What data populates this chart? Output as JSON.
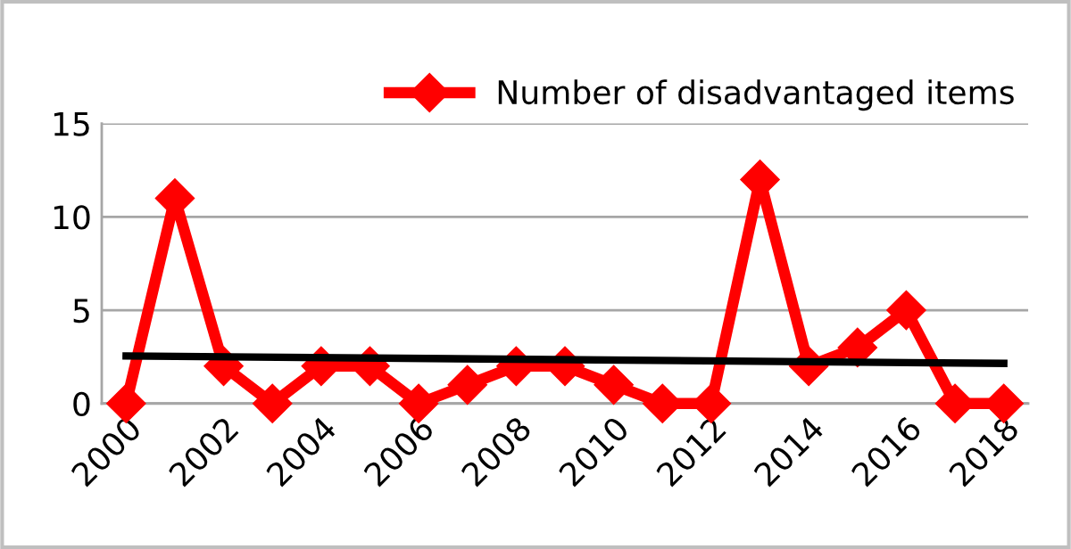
{
  "chart_data": {
    "type": "line",
    "x": [
      2000,
      2001,
      2002,
      2003,
      2004,
      2005,
      2006,
      2007,
      2008,
      2009,
      2010,
      2011,
      2012,
      2013,
      2014,
      2015,
      2016,
      2017,
      2018
    ],
    "series": [
      {
        "name": "Number of disadvantaged items",
        "color": "#ff0000",
        "values": [
          0,
          11,
          2,
          0,
          2,
          2,
          0,
          1,
          2,
          2,
          1,
          0,
          0,
          12,
          2,
          3,
          5,
          0,
          0
        ],
        "marker": "diamond"
      },
      {
        "type": "line",
        "color": "#000000",
        "x": [
          2000,
          2018
        ],
        "values": [
          2.55,
          2.15
        ],
        "marker": "none"
      }
    ],
    "xlim": [
      1999.5,
      2018.5
    ],
    "xticks": [
      2000,
      2002,
      2004,
      2006,
      2008,
      2010,
      2012,
      2014,
      2016,
      2018
    ],
    "ylim": [
      0,
      15
    ],
    "yticks": [
      0,
      5,
      10,
      15
    ],
    "grid": "y",
    "legend": "top right"
  }
}
